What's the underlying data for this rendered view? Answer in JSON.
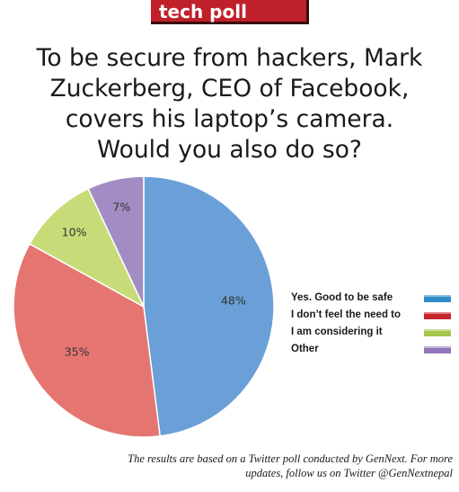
{
  "tag": "tech poll",
  "title_lines": [
    "To be secure from hackers, Mark",
    "Zuckerberg, CEO of Facebook,",
    "covers his laptop’s camera.",
    "Would you also do so?"
  ],
  "chart_data": {
    "type": "pie",
    "categories": [
      "Yes. Good to be safe",
      "I don’t feel the need to",
      "I am considering it",
      "Other"
    ],
    "values": [
      48,
      35,
      10,
      7
    ],
    "labels": [
      "48%",
      "35%",
      "10%",
      "7%"
    ],
    "slice_colors": [
      "#6a9fd8",
      "#e57571",
      "#c7dc78",
      "#a38cc4"
    ],
    "legend_colors": [
      "#2e8ec8",
      "#c8252b",
      "#a3c64c",
      "#9275b9"
    ],
    "legend_position": "right",
    "start_angle": "top",
    "direction": "clockwise"
  },
  "footnote_lines": [
    "The results are based on a Twitter poll conducted by GenNext. For more",
    "updates, follow us on Twitter @GenNextnepal"
  ]
}
